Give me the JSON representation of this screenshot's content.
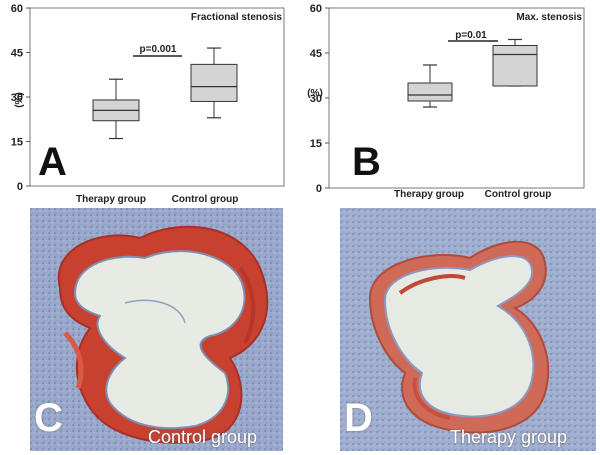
{
  "chart_data": [
    {
      "type": "box",
      "panel_letter": "A",
      "title": "Fractional stenosis",
      "ylabel": "(%)",
      "ylim": [
        0,
        60
      ],
      "yticks": [
        0,
        15,
        30,
        45,
        60
      ],
      "categories": [
        "Therapy group",
        "Control group"
      ],
      "boxes": [
        {
          "min": 16,
          "q1": 22,
          "median": 25.5,
          "q3": 29,
          "max": 36
        },
        {
          "min": 23,
          "q1": 28.5,
          "median": 33.5,
          "q3": 41,
          "max": 46.5
        }
      ],
      "significance": {
        "label": "p=0.001"
      }
    },
    {
      "type": "box",
      "panel_letter": "B",
      "title": "Max. stenosis",
      "ylabel": "(%)",
      "ylim": [
        0,
        60
      ],
      "yticks": [
        0,
        15,
        30,
        45,
        60
      ],
      "categories": [
        "Therapy group",
        "Control group"
      ],
      "boxes": [
        {
          "min": 27,
          "q1": 29,
          "median": 31,
          "q3": 35,
          "max": 41
        },
        {
          "min": 34,
          "q1": 34,
          "median": 44.5,
          "q3": 47.5,
          "max": 49.5
        }
      ],
      "significance": {
        "label": "p=0.01"
      }
    }
  ],
  "photos": [
    {
      "letter": "C",
      "caption": "Control group"
    },
    {
      "letter": "D",
      "caption": "Therapy group"
    }
  ],
  "colors": {
    "box_fill": "#d4d4d4",
    "stain_red": "#c8402e",
    "tissue_blue": "#8b9cc4",
    "lumen": "#e6eae3"
  }
}
